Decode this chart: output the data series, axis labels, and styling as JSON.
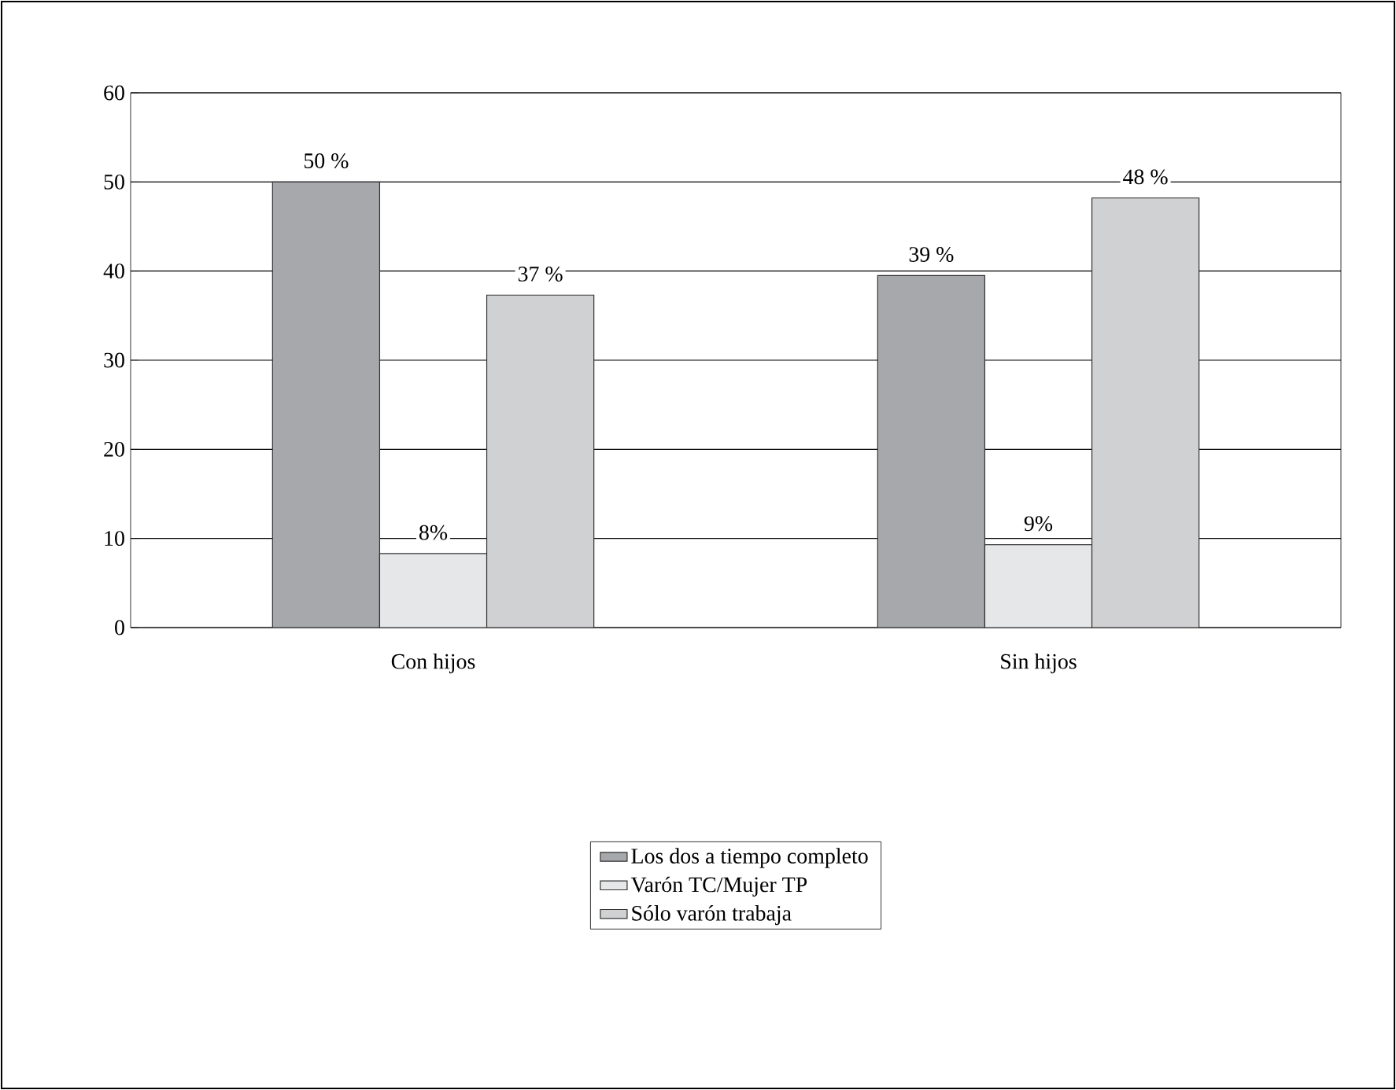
{
  "chart_data": {
    "type": "bar",
    "categories": [
      "Con hijos",
      "Sin hijos"
    ],
    "series": [
      {
        "name": "Los dos a tiempo completo",
        "color": "#a7a8ab",
        "values": [
          50,
          39.5
        ],
        "value_labels": [
          "50 %",
          "39 %"
        ]
      },
      {
        "name": "Varón TC/Mujer TP",
        "color": "#e6e7e8",
        "values": [
          8.3,
          9.3
        ],
        "value_labels": [
          "8%",
          "9%"
        ]
      },
      {
        "name": "Sólo varón trabaja",
        "color": "#d0d1d3",
        "values": [
          37.3,
          48.2
        ],
        "value_labels": [
          "37 %",
          "48 %"
        ]
      }
    ],
    "ylim": [
      0,
      60
    ],
    "yticks": [
      0,
      10,
      20,
      30,
      40,
      50,
      60
    ],
    "grid": "y",
    "legend": "bottom"
  }
}
